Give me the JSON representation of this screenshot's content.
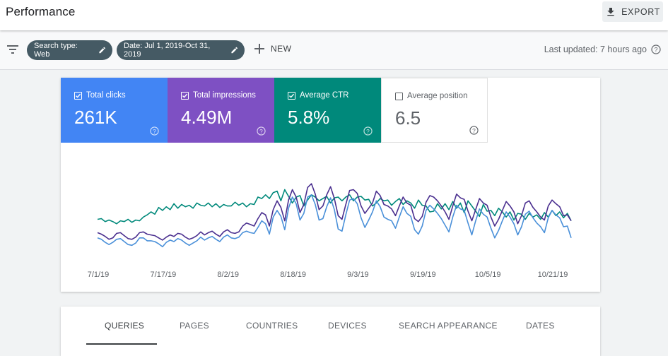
{
  "header": {
    "title": "Performance",
    "export_label": "EXPORT"
  },
  "filters": {
    "chip_search_type": "Search type: Web",
    "chip_date": "Date: Jul 1, 2019-Oct 31, 2019",
    "new_label": "NEW",
    "last_updated": "Last updated: 7 hours ago"
  },
  "metrics": [
    {
      "label": "Total clicks",
      "value": "261K",
      "checked": true,
      "color": "#4285f4"
    },
    {
      "label": "Total impressions",
      "value": "4.49M",
      "checked": true,
      "color": "#7e50c3"
    },
    {
      "label": "Average CTR",
      "value": "5.8%",
      "checked": true,
      "color": "#00897b"
    },
    {
      "label": "Average position",
      "value": "6.5",
      "checked": false,
      "color": "#ffffff"
    }
  ],
  "chart_data": {
    "type": "line",
    "x_tick_labels": [
      "7/1/19",
      "7/17/19",
      "8/2/19",
      "8/18/19",
      "9/3/19",
      "9/19/19",
      "10/5/19",
      "10/21/19"
    ],
    "y_axis_shown": false,
    "grid": false,
    "series": [
      {
        "color": "#00897b",
        "values": [
          0.3,
          0.31,
          0.27,
          0.29,
          0.27,
          0.24,
          0.28,
          0.27,
          0.3,
          0.26,
          0.29,
          0.28,
          0.33,
          0.36,
          0.4,
          0.37,
          0.46,
          0.42,
          0.47,
          0.43,
          0.51,
          0.45,
          0.5,
          0.47,
          0.49,
          0.45,
          0.52,
          0.49,
          0.48,
          0.52,
          0.47,
          0.51,
          0.46,
          0.5,
          0.48,
          0.48,
          0.53,
          0.49,
          0.52,
          0.47,
          0.51,
          0.5,
          0.6,
          0.58,
          0.63,
          0.58,
          0.66,
          0.68,
          0.55,
          0.7,
          0.61,
          0.52,
          0.6,
          0.62,
          0.48,
          0.56,
          0.63,
          0.6,
          0.55,
          0.58,
          0.61,
          0.52,
          0.59,
          0.6,
          0.55,
          0.6,
          0.63,
          0.55,
          0.6,
          0.61,
          0.56,
          0.57,
          0.48,
          0.52,
          0.58,
          0.55,
          0.56,
          0.49,
          0.54,
          0.58,
          0.5,
          0.55,
          0.52,
          0.45,
          0.56,
          0.49,
          0.48,
          0.4,
          0.41,
          0.51,
          0.44,
          0.51,
          0.43,
          0.54,
          0.45,
          0.52,
          0.39,
          0.55,
          0.48,
          0.41,
          0.34,
          0.5,
          0.41,
          0.42,
          0.35,
          0.45,
          0.4,
          0.33,
          0.4,
          0.29,
          0.38,
          0.37,
          0.3,
          0.38,
          0.33,
          0.36,
          0.3,
          0.39,
          0.33,
          0.42,
          0.35,
          0.4,
          0.32,
          0.38,
          0.28
        ]
      },
      {
        "color": "#4a2f8f",
        "values": [
          0.12,
          0.1,
          0.07,
          0.03,
          0.05,
          0.11,
          0.12,
          0.08,
          0.04,
          0.03,
          0.06,
          0.12,
          0.13,
          0.1,
          0.09,
          0.08,
          0.05,
          0.02,
          0.06,
          0.09,
          0.07,
          0.11,
          0.1,
          0.06,
          0.03,
          0.05,
          0.08,
          0.13,
          0.09,
          0.12,
          0.14,
          0.1,
          0.07,
          0.13,
          0.16,
          0.12,
          0.11,
          0.13,
          0.21,
          0.25,
          0.23,
          0.21,
          0.31,
          0.39,
          0.36,
          0.21,
          0.43,
          0.55,
          0.46,
          0.28,
          0.56,
          0.7,
          0.6,
          0.39,
          0.5,
          0.73,
          0.78,
          0.64,
          0.43,
          0.48,
          0.63,
          0.74,
          0.58,
          0.35,
          0.3,
          0.5,
          0.69,
          0.7,
          0.65,
          0.48,
          0.38,
          0.45,
          0.52,
          0.68,
          0.62,
          0.5,
          0.48,
          0.44,
          0.35,
          0.48,
          0.6,
          0.52,
          0.49,
          0.31,
          0.27,
          0.34,
          0.53,
          0.62,
          0.6,
          0.55,
          0.48,
          0.4,
          0.3,
          0.48,
          0.64,
          0.59,
          0.57,
          0.41,
          0.28,
          0.43,
          0.58,
          0.52,
          0.49,
          0.33,
          0.21,
          0.3,
          0.42,
          0.54,
          0.48,
          0.4,
          0.24,
          0.35,
          0.52,
          0.55,
          0.46,
          0.4,
          0.33,
          0.29,
          0.48,
          0.56,
          0.51,
          0.47,
          0.35,
          0.36,
          0.28
        ]
      },
      {
        "color": "#4a90d9",
        "values": [
          0.05,
          0.03,
          -0.01,
          -0.04,
          -0.01,
          0.03,
          0.04,
          0.0,
          -0.04,
          -0.05,
          -0.02,
          0.05,
          0.05,
          0.01,
          0.01,
          0.0,
          -0.03,
          -0.07,
          -0.01,
          0.02,
          0.0,
          0.04,
          0.02,
          -0.02,
          -0.05,
          -0.02,
          0.01,
          0.06,
          0.02,
          0.05,
          0.07,
          0.03,
          0.0,
          0.06,
          0.09,
          0.05,
          0.04,
          0.06,
          0.12,
          0.14,
          0.12,
          0.11,
          0.19,
          0.28,
          0.24,
          0.1,
          0.33,
          0.42,
          0.34,
          0.16,
          0.45,
          0.6,
          0.51,
          0.29,
          0.38,
          0.6,
          0.63,
          0.5,
          0.29,
          0.31,
          0.47,
          0.59,
          0.43,
          0.17,
          0.14,
          0.36,
          0.56,
          0.58,
          0.51,
          0.32,
          0.19,
          0.29,
          0.4,
          0.55,
          0.47,
          0.33,
          0.3,
          0.28,
          0.18,
          0.33,
          0.47,
          0.38,
          0.34,
          0.16,
          0.1,
          0.21,
          0.42,
          0.49,
          0.44,
          0.38,
          0.31,
          0.22,
          0.13,
          0.33,
          0.49,
          0.44,
          0.42,
          0.25,
          0.09,
          0.28,
          0.44,
          0.37,
          0.33,
          0.18,
          0.05,
          0.15,
          0.28,
          0.4,
          0.33,
          0.24,
          0.09,
          0.2,
          0.37,
          0.41,
          0.32,
          0.25,
          0.2,
          0.12,
          0.32,
          0.42,
          0.36,
          0.32,
          0.2,
          0.21,
          0.05
        ]
      }
    ]
  },
  "tabs": [
    "QUERIES",
    "PAGES",
    "COUNTRIES",
    "DEVICES",
    "SEARCH APPEARANCE",
    "DATES"
  ],
  "active_tab": "QUERIES"
}
